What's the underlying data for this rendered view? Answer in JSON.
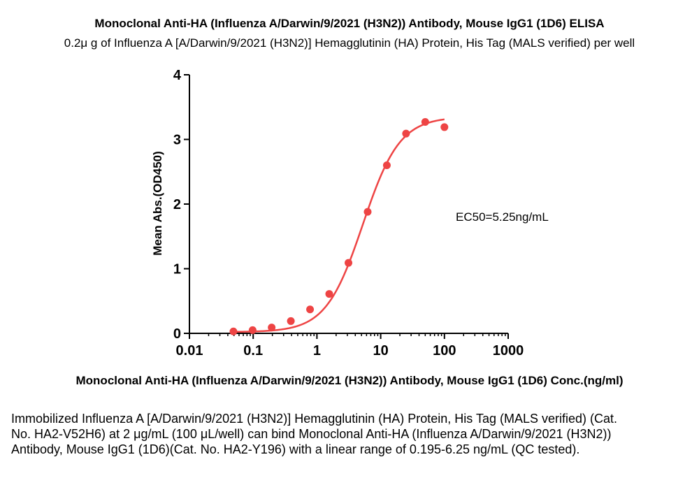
{
  "chart_data": {
    "type": "scatter",
    "title": "Monoclonal Anti-HA (Influenza A/Darwin/9/2021 (H3N2)) Antibody, Mouse IgG1 (1D6) ELISA",
    "subtitle": "0.2μ g of Influenza A [A/Darwin/9/2021 (H3N2)] Hemagglutinin (HA) Protein, His Tag (MALS verified) per well",
    "xlabel": "Monoclonal Anti-HA (Influenza A/Darwin/9/2021 (H3N2)) Antibody, Mouse IgG1 (1D6) Conc.(ng/ml)",
    "ylabel": "Mean Abs.(OD450)",
    "x_scale": "log",
    "xlim": [
      0.01,
      1000
    ],
    "ylim": [
      0,
      4
    ],
    "x_ticks": [
      "0.01",
      "0.1",
      "1",
      "10",
      "100",
      "1000"
    ],
    "y_ticks": [
      "0",
      "1",
      "2",
      "3",
      "4"
    ],
    "annotation": "EC50=5.25ng/mL",
    "color": "#ee4444",
    "grid": false,
    "series": [
      {
        "x": [
          0.049,
          0.098,
          0.195,
          0.39,
          0.78,
          1.56,
          3.125,
          6.25,
          12.5,
          25,
          50,
          100
        ],
        "y": [
          0.03,
          0.05,
          0.09,
          0.19,
          0.37,
          0.61,
          1.09,
          1.88,
          2.6,
          3.09,
          3.27,
          3.19
        ]
      }
    ],
    "fit": {
      "model": "4PL",
      "bottom": 0.02,
      "top": 3.35,
      "ec50": 5.25,
      "hill": 1.5
    }
  },
  "caption": "Immobilized Influenza A [A/Darwin/9/2021 (H3N2)] Hemagglutinin (HA) Protein, His Tag (MALS verified) (Cat. No. HA2-V52H6) at 2 μg/mL (100 μL/well) can bind Monoclonal Anti-HA (Influenza A/Darwin/9/2021 (H3N2)) Antibody, Mouse IgG1 (1D6)(Cat. No. HA2-Y196) with a linear range of 0.195-6.25 ng/mL (QC tested)."
}
